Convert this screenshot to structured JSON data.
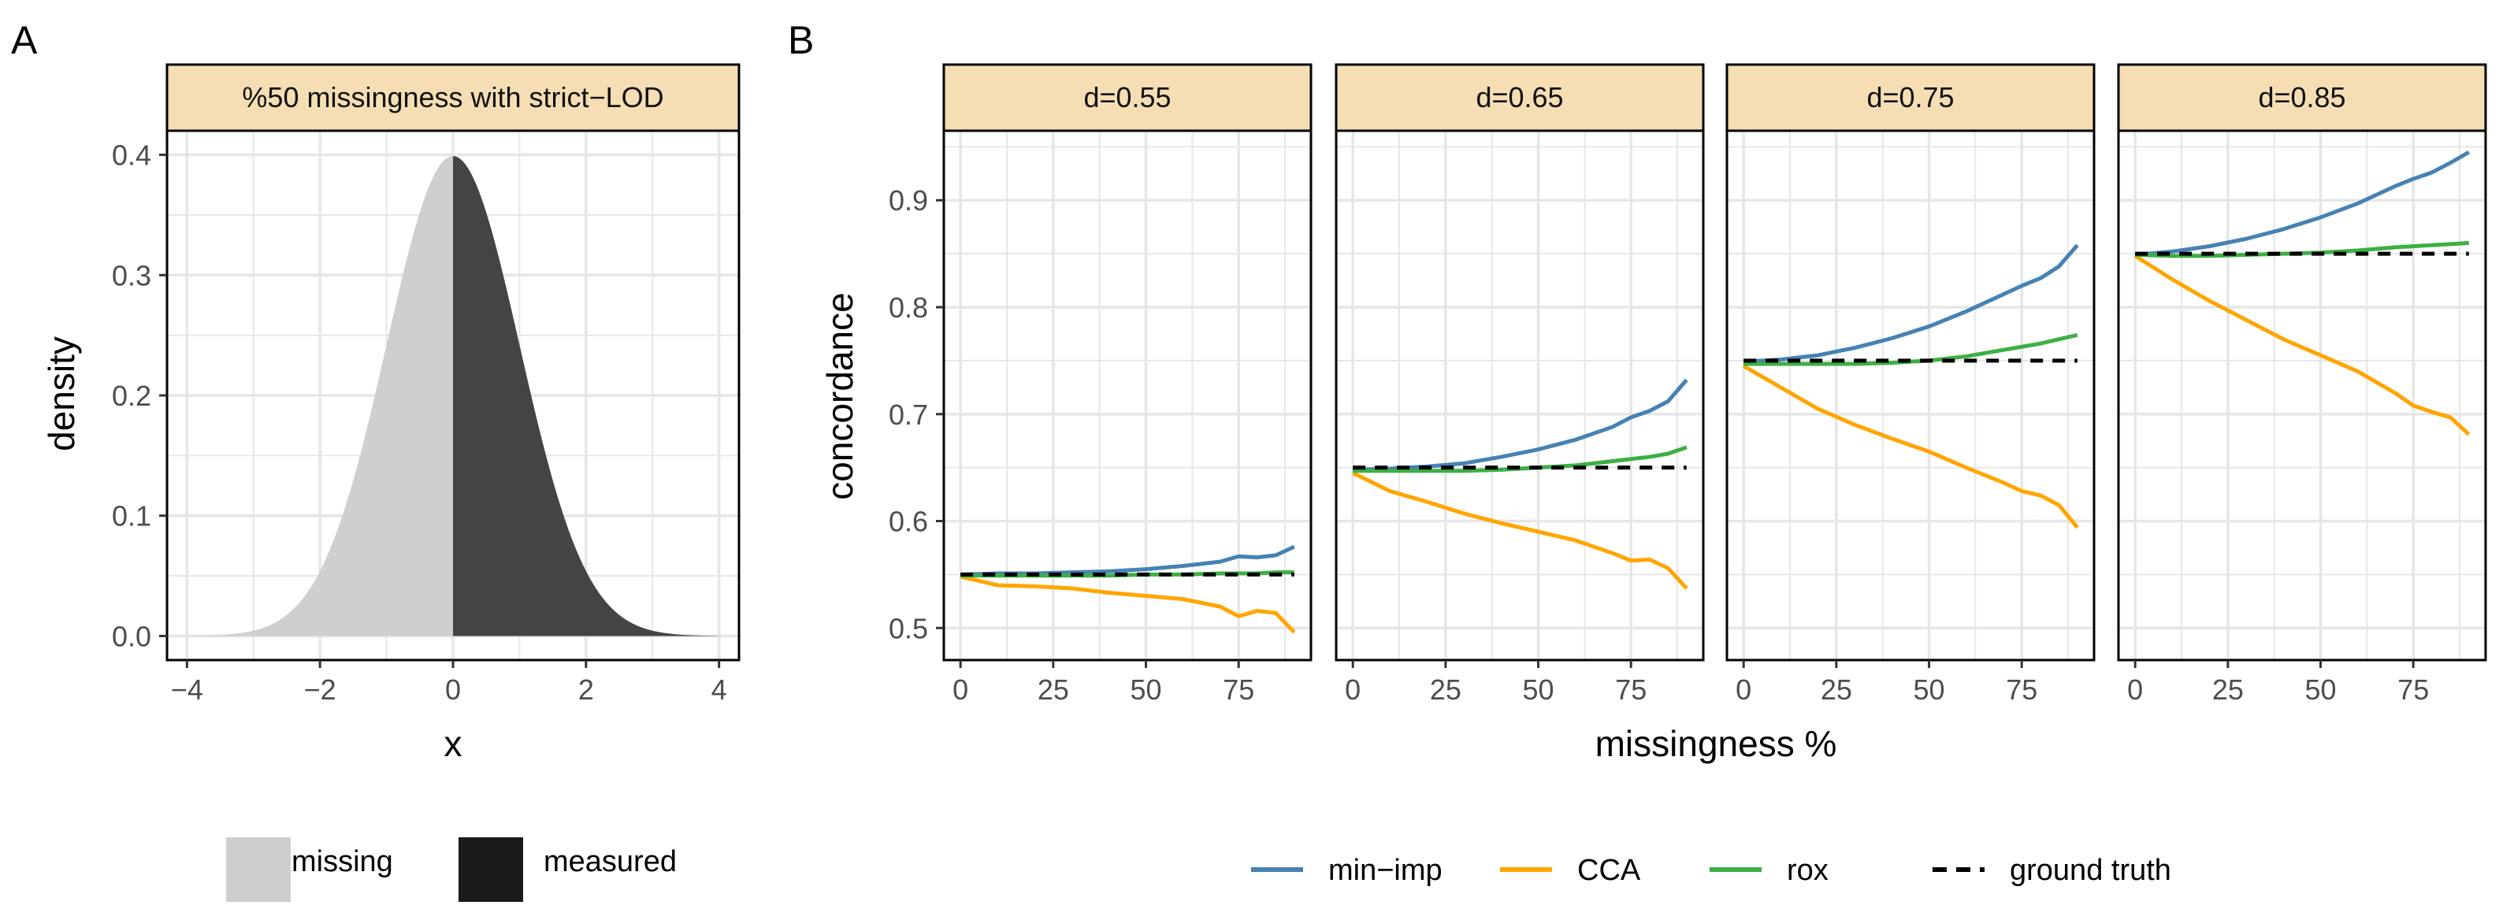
{
  "figure": {
    "panel_a_label": "A",
    "panel_b_label": "B",
    "colors": {
      "strip_fill": "#f5deb3",
      "grid": "#e6e6e6",
      "missing": "#cfcfcf",
      "measured": "#444444",
      "measured_legend": "#1a1a1a",
      "min_imp": "#4682b4",
      "cca": "#ffa500",
      "rox": "#3cb043",
      "ground_truth": "#000000"
    }
  },
  "chart_data": [
    {
      "type": "area",
      "panel": "A",
      "facet_title": "%50 missingness with strict−LOD",
      "xlabel": "x",
      "ylabel": "density",
      "xlim": [
        -4.3,
        4.3
      ],
      "ylim": [
        -0.02,
        0.42
      ],
      "xticks": [
        -4,
        -2,
        0,
        2,
        4
      ],
      "xtick_labels": [
        "−4",
        "−2",
        "0",
        "2",
        "4"
      ],
      "yticks": [
        0.0,
        0.1,
        0.2,
        0.3,
        0.4
      ],
      "ytick_labels": [
        "0.0",
        "0.1",
        "0.2",
        "0.3",
        "0.4"
      ],
      "distribution": "standard normal density, x from -4 to 4",
      "cutoff": 0,
      "series": [
        {
          "name": "missing",
          "x_range": [
            -4,
            0
          ]
        },
        {
          "name": "measured",
          "x_range": [
            0,
            4
          ]
        }
      ],
      "legend": [
        {
          "label": "missing",
          "color_key": "missing"
        },
        {
          "label": "measured",
          "color_key": "measured_legend"
        }
      ]
    },
    {
      "type": "line",
      "panel": "B",
      "xlabel": "missingness %",
      "ylabel": "concordance",
      "xlim": [
        -4.5,
        94.5
      ],
      "ylim": [
        0.47,
        0.965
      ],
      "xticks": [
        0,
        25,
        50,
        75
      ],
      "xtick_labels": [
        "0",
        "25",
        "50",
        "75"
      ],
      "yticks": [
        0.5,
        0.6,
        0.7,
        0.8,
        0.9
      ],
      "ytick_labels": [
        "0.5",
        "0.6",
        "0.7",
        "0.8",
        "0.9"
      ],
      "x": [
        0,
        10,
        20,
        30,
        40,
        50,
        60,
        70,
        75,
        80,
        85,
        90
      ],
      "facets": [
        {
          "title": "d=0.55",
          "series": [
            {
              "name": "min−imp",
              "values": [
                0.55,
                0.551,
                0.551,
                0.552,
                0.553,
                0.555,
                0.558,
                0.562,
                0.567,
                0.566,
                0.568,
                0.576
              ]
            },
            {
              "name": "CCA",
              "values": [
                0.548,
                0.54,
                0.539,
                0.537,
                0.533,
                0.53,
                0.527,
                0.52,
                0.511,
                0.516,
                0.514,
                0.496
              ]
            },
            {
              "name": "rox",
              "values": [
                0.549,
                0.549,
                0.549,
                0.549,
                0.549,
                0.55,
                0.55,
                0.551,
                0.551,
                0.551,
                0.552,
                0.552
              ]
            },
            {
              "name": "ground truth",
              "values": [
                0.55,
                0.55,
                0.55,
                0.55,
                0.55,
                0.55,
                0.55,
                0.55,
                0.55,
                0.55,
                0.55,
                0.55
              ]
            }
          ]
        },
        {
          "title": "d=0.65",
          "series": [
            {
              "name": "min−imp",
              "values": [
                0.648,
                0.649,
                0.651,
                0.654,
                0.66,
                0.667,
                0.676,
                0.688,
                0.697,
                0.703,
                0.712,
                0.732
              ]
            },
            {
              "name": "CCA",
              "values": [
                0.645,
                0.628,
                0.618,
                0.607,
                0.598,
                0.59,
                0.582,
                0.57,
                0.563,
                0.564,
                0.556,
                0.537
              ]
            },
            {
              "name": "rox",
              "values": [
                0.647,
                0.647,
                0.647,
                0.647,
                0.648,
                0.65,
                0.652,
                0.656,
                0.658,
                0.66,
                0.663,
                0.669
              ]
            },
            {
              "name": "ground truth",
              "values": [
                0.65,
                0.65,
                0.65,
                0.65,
                0.65,
                0.65,
                0.65,
                0.65,
                0.65,
                0.65,
                0.65,
                0.65
              ]
            }
          ]
        },
        {
          "title": "d=0.75",
          "series": [
            {
              "name": "min−imp",
              "values": [
                0.749,
                0.751,
                0.755,
                0.762,
                0.771,
                0.782,
                0.796,
                0.812,
                0.82,
                0.827,
                0.838,
                0.858
              ]
            },
            {
              "name": "CCA",
              "values": [
                0.745,
                0.725,
                0.705,
                0.69,
                0.677,
                0.665,
                0.65,
                0.636,
                0.628,
                0.624,
                0.615,
                0.594
              ]
            },
            {
              "name": "rox",
              "values": [
                0.747,
                0.747,
                0.747,
                0.747,
                0.748,
                0.75,
                0.754,
                0.76,
                0.763,
                0.766,
                0.77,
                0.774
              ]
            },
            {
              "name": "ground truth",
              "values": [
                0.75,
                0.75,
                0.75,
                0.75,
                0.75,
                0.75,
                0.75,
                0.75,
                0.75,
                0.75,
                0.75,
                0.75
              ]
            }
          ]
        },
        {
          "title": "d=0.85",
          "series": [
            {
              "name": "min−imp",
              "values": [
                0.849,
                0.852,
                0.857,
                0.864,
                0.873,
                0.884,
                0.897,
                0.913,
                0.92,
                0.926,
                0.935,
                0.945
              ]
            },
            {
              "name": "CCA",
              "values": [
                0.848,
                0.826,
                0.806,
                0.788,
                0.77,
                0.755,
                0.74,
                0.72,
                0.708,
                0.702,
                0.697,
                0.681
              ]
            },
            {
              "name": "rox",
              "values": [
                0.849,
                0.848,
                0.848,
                0.849,
                0.85,
                0.851,
                0.853,
                0.856,
                0.857,
                0.858,
                0.859,
                0.86
              ]
            },
            {
              "name": "ground truth",
              "values": [
                0.85,
                0.85,
                0.85,
                0.85,
                0.85,
                0.85,
                0.85,
                0.85,
                0.85,
                0.85,
                0.85,
                0.85
              ]
            }
          ]
        }
      ],
      "legend": [
        {
          "label": "min−imp",
          "color_key": "min_imp",
          "dash": false
        },
        {
          "label": "CCA",
          "color_key": "cca",
          "dash": false
        },
        {
          "label": "rox",
          "color_key": "rox",
          "dash": false
        },
        {
          "label": "ground truth",
          "color_key": "ground_truth",
          "dash": true
        }
      ]
    }
  ]
}
